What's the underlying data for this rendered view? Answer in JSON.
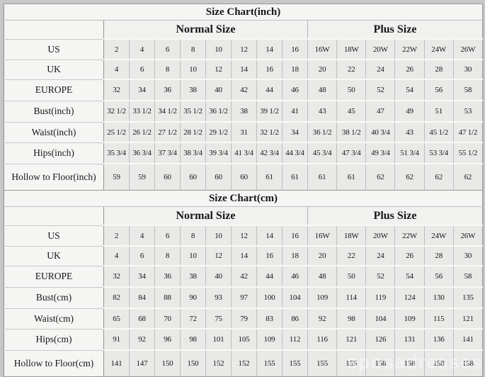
{
  "page": {
    "background_color": "#c8c8c8",
    "watermark": "sposadresses"
  },
  "chart_data": [
    {
      "type": "table",
      "title": "Size Chart(inch)",
      "column_groups": [
        {
          "label": "Normal Size",
          "span": 8
        },
        {
          "label": "Plus Size",
          "span": 6
        }
      ],
      "rows": [
        {
          "label": "US",
          "normal": [
            "2",
            "4",
            "6",
            "8",
            "10",
            "12",
            "14",
            "16"
          ],
          "plus": [
            "16W",
            "18W",
            "20W",
            "22W",
            "24W",
            "26W"
          ]
        },
        {
          "label": "UK",
          "normal": [
            "4",
            "6",
            "8",
            "10",
            "12",
            "14",
            "16",
            "18"
          ],
          "plus": [
            "20",
            "22",
            "24",
            "26",
            "28",
            "30"
          ]
        },
        {
          "label": "EUROPE",
          "normal": [
            "32",
            "34",
            "36",
            "38",
            "40",
            "42",
            "44",
            "46"
          ],
          "plus": [
            "48",
            "50",
            "52",
            "54",
            "56",
            "58"
          ]
        },
        {
          "label": "Bust(inch)",
          "normal": [
            "32 1/2",
            "33 1/2",
            "34 1/2",
            "35 1/2",
            "36 1/2",
            "38",
            "39 1/2",
            "41"
          ],
          "plus": [
            "43",
            "45",
            "47",
            "49",
            "51",
            "53"
          ]
        },
        {
          "label": "Waist(inch)",
          "normal": [
            "25 1/2",
            "26 1/2",
            "27 1/2",
            "28 1/2",
            "29 1/2",
            "31",
            "32 1/2",
            "34"
          ],
          "plus": [
            "36 1/2",
            "38 1/2",
            "40 3/4",
            "43",
            "45 1/2",
            "47 1/2"
          ]
        },
        {
          "label": "Hips(inch)",
          "normal": [
            "35 3/4",
            "36 3/4",
            "37 3/4",
            "38 3/4",
            "39 3/4",
            "41 3/4",
            "42 3/4",
            "44 3/4"
          ],
          "plus": [
            "45 3/4",
            "47 3/4",
            "49 3/4",
            "51 3/4",
            "53 3/4",
            "55 1/2"
          ]
        },
        {
          "label": "Hollow to Floor(inch)",
          "normal": [
            "59",
            "59",
            "60",
            "60",
            "60",
            "60",
            "61",
            "61"
          ],
          "plus": [
            "61",
            "61",
            "62",
            "62",
            "62",
            "62"
          ]
        }
      ]
    },
    {
      "type": "table",
      "title": "Size Chart(cm)",
      "column_groups": [
        {
          "label": "Normal Size",
          "span": 8
        },
        {
          "label": "Plus Size",
          "span": 6
        }
      ],
      "rows": [
        {
          "label": "US",
          "normal": [
            "2",
            "4",
            "6",
            "8",
            "10",
            "12",
            "14",
            "16"
          ],
          "plus": [
            "16W",
            "18W",
            "20W",
            "22W",
            "24W",
            "26W"
          ]
        },
        {
          "label": "UK",
          "normal": [
            "4",
            "6",
            "8",
            "10",
            "12",
            "14",
            "16",
            "18"
          ],
          "plus": [
            "20",
            "22",
            "24",
            "26",
            "28",
            "30"
          ]
        },
        {
          "label": "EUROPE",
          "normal": [
            "32",
            "34",
            "36",
            "38",
            "40",
            "42",
            "44",
            "46"
          ],
          "plus": [
            "48",
            "50",
            "52",
            "54",
            "56",
            "58"
          ]
        },
        {
          "label": "Bust(cm)",
          "normal": [
            "82",
            "84",
            "88",
            "90",
            "93",
            "97",
            "100",
            "104"
          ],
          "plus": [
            "109",
            "114",
            "119",
            "124",
            "130",
            "135"
          ]
        },
        {
          "label": "Waist(cm)",
          "normal": [
            "65",
            "68",
            "70",
            "72",
            "75",
            "79",
            "83",
            "86"
          ],
          "plus": [
            "92",
            "98",
            "104",
            "109",
            "115",
            "121"
          ]
        },
        {
          "label": "Hips(cm)",
          "normal": [
            "91",
            "92",
            "96",
            "98",
            "101",
            "105",
            "109",
            "112"
          ],
          "plus": [
            "116",
            "121",
            "126",
            "131",
            "136",
            "141"
          ]
        },
        {
          "label": "Hollow to Floor(cm)",
          "normal": [
            "141",
            "147",
            "150",
            "150",
            "152",
            "152",
            "155",
            "155"
          ],
          "plus": [
            "155",
            "155",
            "158",
            "158",
            "158",
            "158"
          ]
        }
      ]
    }
  ]
}
